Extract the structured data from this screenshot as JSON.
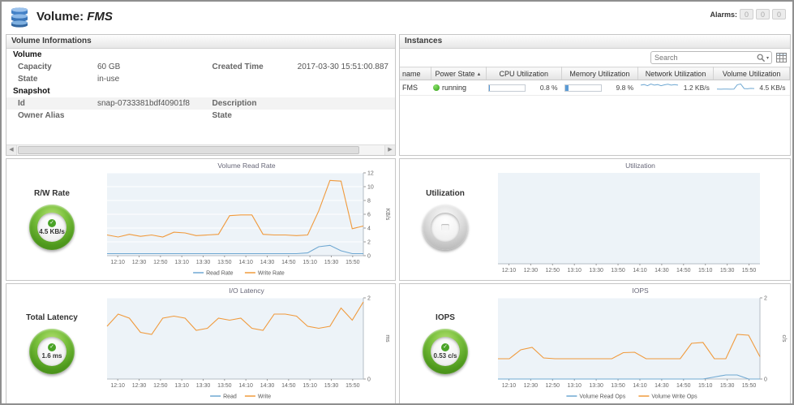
{
  "header": {
    "title_prefix": "Volume:",
    "title_name": "FMS",
    "alarms_label": "Alarms:",
    "alarm_counts": [
      "0",
      "0",
      "0"
    ]
  },
  "volume_info": {
    "panel_title": "Volume Informations",
    "section_volume": "Volume",
    "capacity_label": "Capacity",
    "capacity_value": "60 GB",
    "created_label": "Created Time",
    "created_value": "2017-03-30 15:51:00.887",
    "state_label": "State",
    "state_value": "in-use",
    "section_snapshot": "Snapshot",
    "id_label": "Id",
    "id_value": "snap-0733381bdf40901f8",
    "description_label": "Description",
    "owner_label": "Owner Alias",
    "state2_label": "State"
  },
  "instances": {
    "panel_title": "Instances",
    "search_placeholder": "Search",
    "columns": [
      "name",
      "Power State",
      "CPU Utilization",
      "Memory Utilization",
      "Network Utilization",
      "Volume Utilization"
    ],
    "row": {
      "name": "FMS",
      "power_state": "running",
      "cpu_pct": 0.8,
      "cpu_text": "0.8 %",
      "mem_pct": 9.8,
      "mem_text": "9.8 %",
      "net_text": "1.2 KB/s",
      "net_spark": [
        1.1,
        1.2,
        1.0,
        1.3,
        1.1,
        1.2,
        1.0,
        1.15,
        1.25,
        1.1,
        1.2,
        1.1
      ],
      "vol_text": "4.5 KB/s",
      "vol_spark": [
        3.2,
        3.0,
        3.3,
        3.1,
        3.0,
        3.2,
        9.5,
        10.5,
        4.0,
        3.6,
        4.2,
        4.0
      ]
    }
  },
  "gauges": [
    {
      "label": "R/W Rate",
      "value": "4.5 KB/s"
    },
    {
      "label": "Utilization",
      "value": ""
    },
    {
      "label": "Total Latency",
      "value": "1.6 ms"
    },
    {
      "label": "IOPS",
      "value": "0.53 c/s"
    }
  ],
  "chart_data": [
    {
      "type": "line",
      "title": "Volume Read Rate",
      "x_ticks": [
        "12:10",
        "12:30",
        "12:50",
        "13:10",
        "13:30",
        "13:50",
        "14:10",
        "14:30",
        "14:50",
        "15:10",
        "15:30",
        "15:50"
      ],
      "ylabel": "KB/s",
      "ylim": [
        0,
        12
      ],
      "yticks": [
        0,
        2,
        4,
        6,
        8,
        10,
        12
      ],
      "series": [
        {
          "name": "Read Rate",
          "color": "#6fa8d2",
          "values": [
            0.3,
            0.3,
            0.3,
            0.3,
            0.3,
            0.3,
            0.3,
            0.3,
            0.3,
            0.3,
            0.3,
            0.3,
            0.3,
            0.3,
            0.3,
            0.3,
            0.3,
            0.3,
            0.4,
            1.3,
            1.5,
            0.7,
            0.3,
            0.3
          ]
        },
        {
          "name": "Write Rate",
          "color": "#f09a3c",
          "values": [
            3.0,
            2.7,
            3.1,
            2.8,
            3.0,
            2.7,
            3.4,
            3.3,
            2.9,
            3.0,
            3.1,
            5.8,
            5.9,
            5.9,
            3.1,
            3.0,
            3.0,
            2.9,
            3.0,
            6.5,
            10.9,
            10.8,
            3.9,
            4.3
          ]
        }
      ]
    },
    {
      "type": "line",
      "title": "Utilization",
      "x_ticks": [
        "12:10",
        "12:30",
        "12:50",
        "13:10",
        "13:30",
        "13:50",
        "14:10",
        "14:30",
        "14:50",
        "15:10",
        "15:30",
        "15:50"
      ],
      "ylabel": "",
      "ylim": [
        0,
        1
      ],
      "yticks": [],
      "series": []
    },
    {
      "type": "line",
      "title": "I/O Latency",
      "x_ticks": [
        "12:10",
        "12:30",
        "12:50",
        "13:10",
        "13:30",
        "13:50",
        "14:10",
        "14:30",
        "14:50",
        "15:10",
        "15:30",
        "15:50"
      ],
      "ylabel": "ms",
      "ylim": [
        0,
        2
      ],
      "yticks": [
        0,
        2
      ],
      "series": [
        {
          "name": "Read",
          "color": "#6fa8d2",
          "values": []
        },
        {
          "name": "Write",
          "color": "#f09a3c",
          "values": [
            1.3,
            1.6,
            1.5,
            1.15,
            1.1,
            1.5,
            1.55,
            1.5,
            1.2,
            1.25,
            1.5,
            1.45,
            1.5,
            1.25,
            1.2,
            1.6,
            1.6,
            1.55,
            1.3,
            1.25,
            1.3,
            1.75,
            1.45,
            1.9
          ]
        }
      ]
    },
    {
      "type": "line",
      "title": "IOPS",
      "x_ticks": [
        "12:10",
        "12:30",
        "12:50",
        "13:10",
        "13:30",
        "13:50",
        "14:10",
        "14:30",
        "14:50",
        "15:10",
        "15:30",
        "15:50"
      ],
      "ylabel": "c/s",
      "ylim": [
        0,
        2
      ],
      "yticks": [
        0,
        2
      ],
      "series": [
        {
          "name": "Volume Read Ops",
          "color": "#6fa8d2",
          "values": [
            0,
            0,
            0,
            0,
            0,
            0,
            0,
            0,
            0,
            0,
            0,
            0,
            0,
            0,
            0,
            0,
            0,
            0,
            0,
            0.05,
            0.1,
            0.1,
            0,
            0
          ]
        },
        {
          "name": "Volume Write Ops",
          "color": "#f09a3c",
          "values": [
            0.5,
            0.5,
            0.72,
            0.78,
            0.52,
            0.5,
            0.5,
            0.5,
            0.5,
            0.5,
            0.5,
            0.65,
            0.66,
            0.5,
            0.5,
            0.5,
            0.5,
            0.88,
            0.9,
            0.5,
            0.5,
            1.1,
            1.08,
            0.55
          ]
        }
      ]
    }
  ]
}
